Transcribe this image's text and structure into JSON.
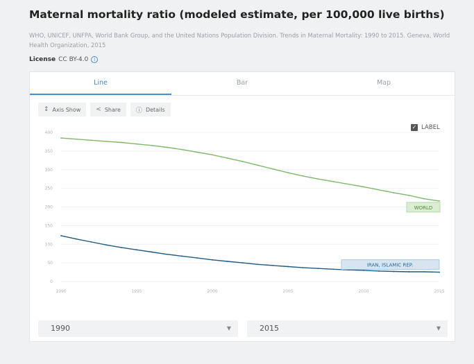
{
  "title": "Maternal mortality ratio (modeled estimate, per 100,000 live births)",
  "source": "WHO, UNICEF, UNFPA, World Bank Group, and the United Nations Population Division. Trends in Maternal Mortality: 1990 to 2015. Geneva, World Health Organization, 2015",
  "license": {
    "label": "License",
    "value": "CC BY-4.0",
    "info_icon": "info-icon"
  },
  "tabs": [
    {
      "label": "Line",
      "active": true
    },
    {
      "label": "Bar",
      "active": false
    },
    {
      "label": "Map",
      "active": false
    }
  ],
  "toolbar": {
    "axis_label": "Axis Show",
    "share_label": "Share",
    "details_label": "Details"
  },
  "label_toggle": {
    "label": "LABEL",
    "checked": true
  },
  "colors": {
    "world": "#7fb86a",
    "iran": "#1f5a80",
    "tab_accent": "#4a90c8"
  },
  "chart_data": {
    "type": "line",
    "x": [
      1990,
      1991,
      1992,
      1993,
      1994,
      1995,
      1996,
      1997,
      1998,
      1999,
      2000,
      2001,
      2002,
      2003,
      2004,
      2005,
      2006,
      2007,
      2008,
      2009,
      2010,
      2011,
      2012,
      2013,
      2014,
      2015
    ],
    "series": [
      {
        "name": "WORLD",
        "values": [
          385,
          382,
          379,
          376,
          373,
          369,
          365,
          360,
          354,
          347,
          340,
          331,
          322,
          312,
          302,
          292,
          283,
          275,
          268,
          261,
          254,
          246,
          238,
          231,
          222,
          216
        ]
      },
      {
        "name": "IRAN, ISLAMIC REP.",
        "values": [
          123,
          114,
          106,
          98,
          91,
          85,
          79,
          73,
          68,
          63,
          58,
          54,
          50,
          46,
          43,
          40,
          37,
          35,
          33,
          31,
          30,
          28,
          27,
          26,
          26,
          25
        ]
      }
    ],
    "xticks": [
      1990,
      1995,
      2000,
      2005,
      2010,
      2015
    ],
    "yticks": [
      0,
      50,
      100,
      150,
      200,
      250,
      300,
      350,
      400
    ],
    "xlim": [
      1990,
      2015
    ],
    "ylim": [
      0,
      400
    ],
    "grid": true
  },
  "range": {
    "from": "1990",
    "to": "2015"
  }
}
